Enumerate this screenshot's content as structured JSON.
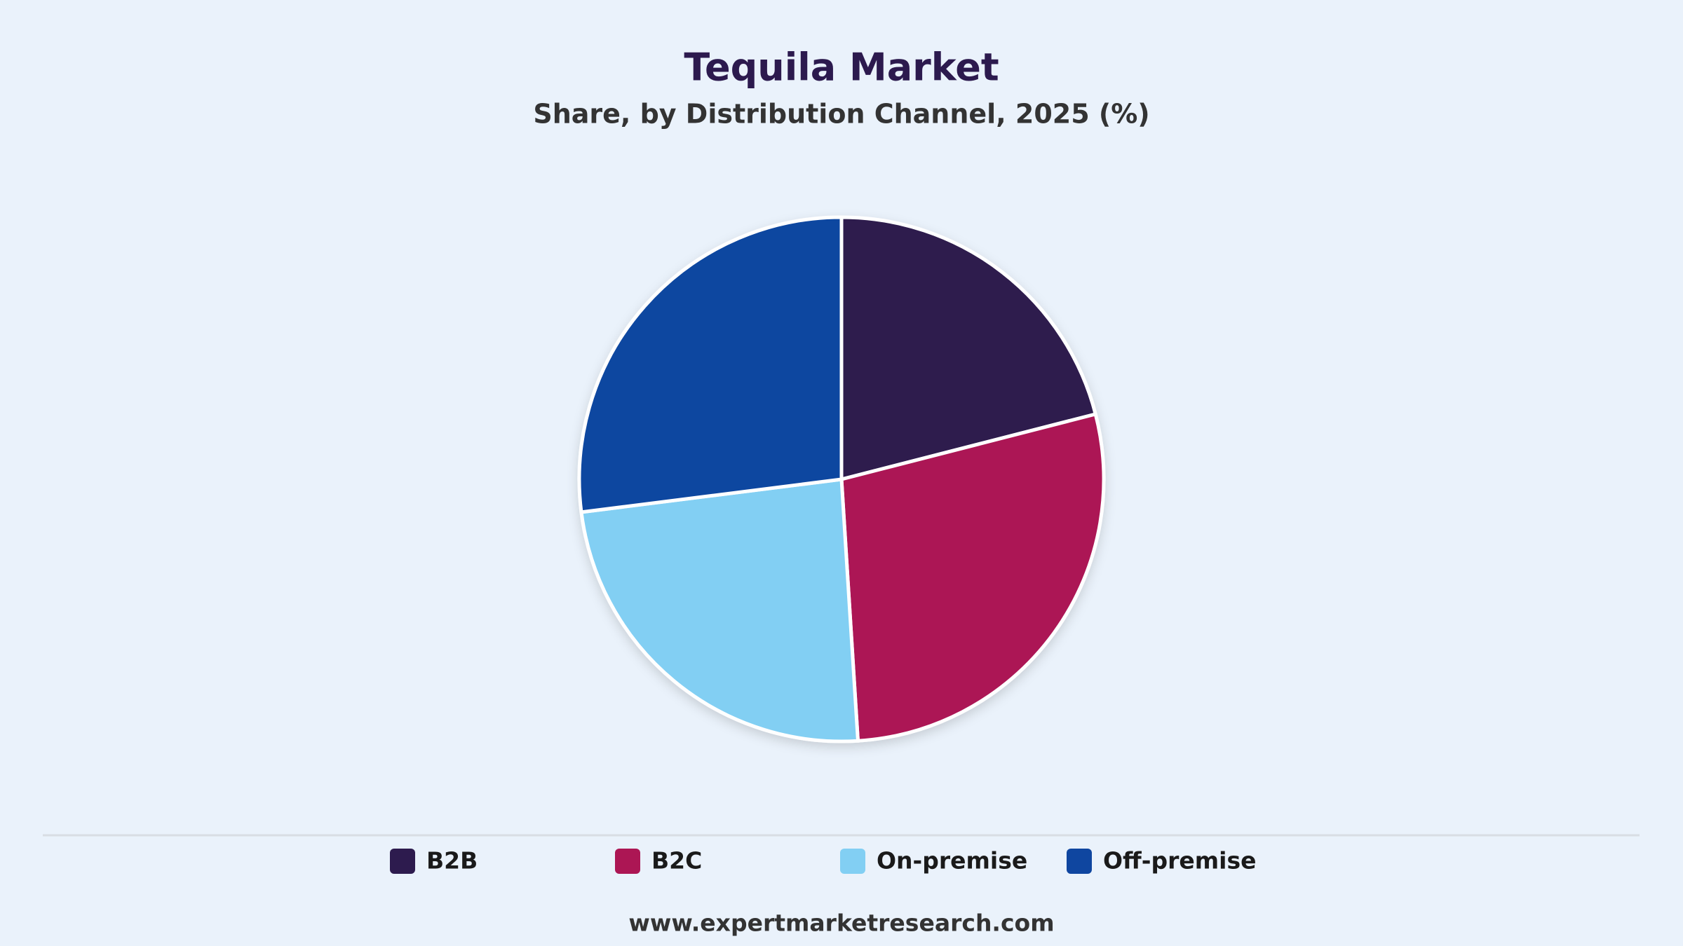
{
  "chart_data": {
    "type": "pie",
    "title": "Tequila Market",
    "subtitle": "Share, by Distribution Channel, 2025 (%)",
    "categories": [
      "B2B",
      "B2C",
      "On-premise",
      "Off-premise"
    ],
    "values": [
      21,
      28,
      24,
      27
    ],
    "colors": [
      "#2d1b4e",
      "#ac1654",
      "#82cff3",
      "#0f46a0"
    ],
    "source": "www.expertmarketresearch.com"
  }
}
